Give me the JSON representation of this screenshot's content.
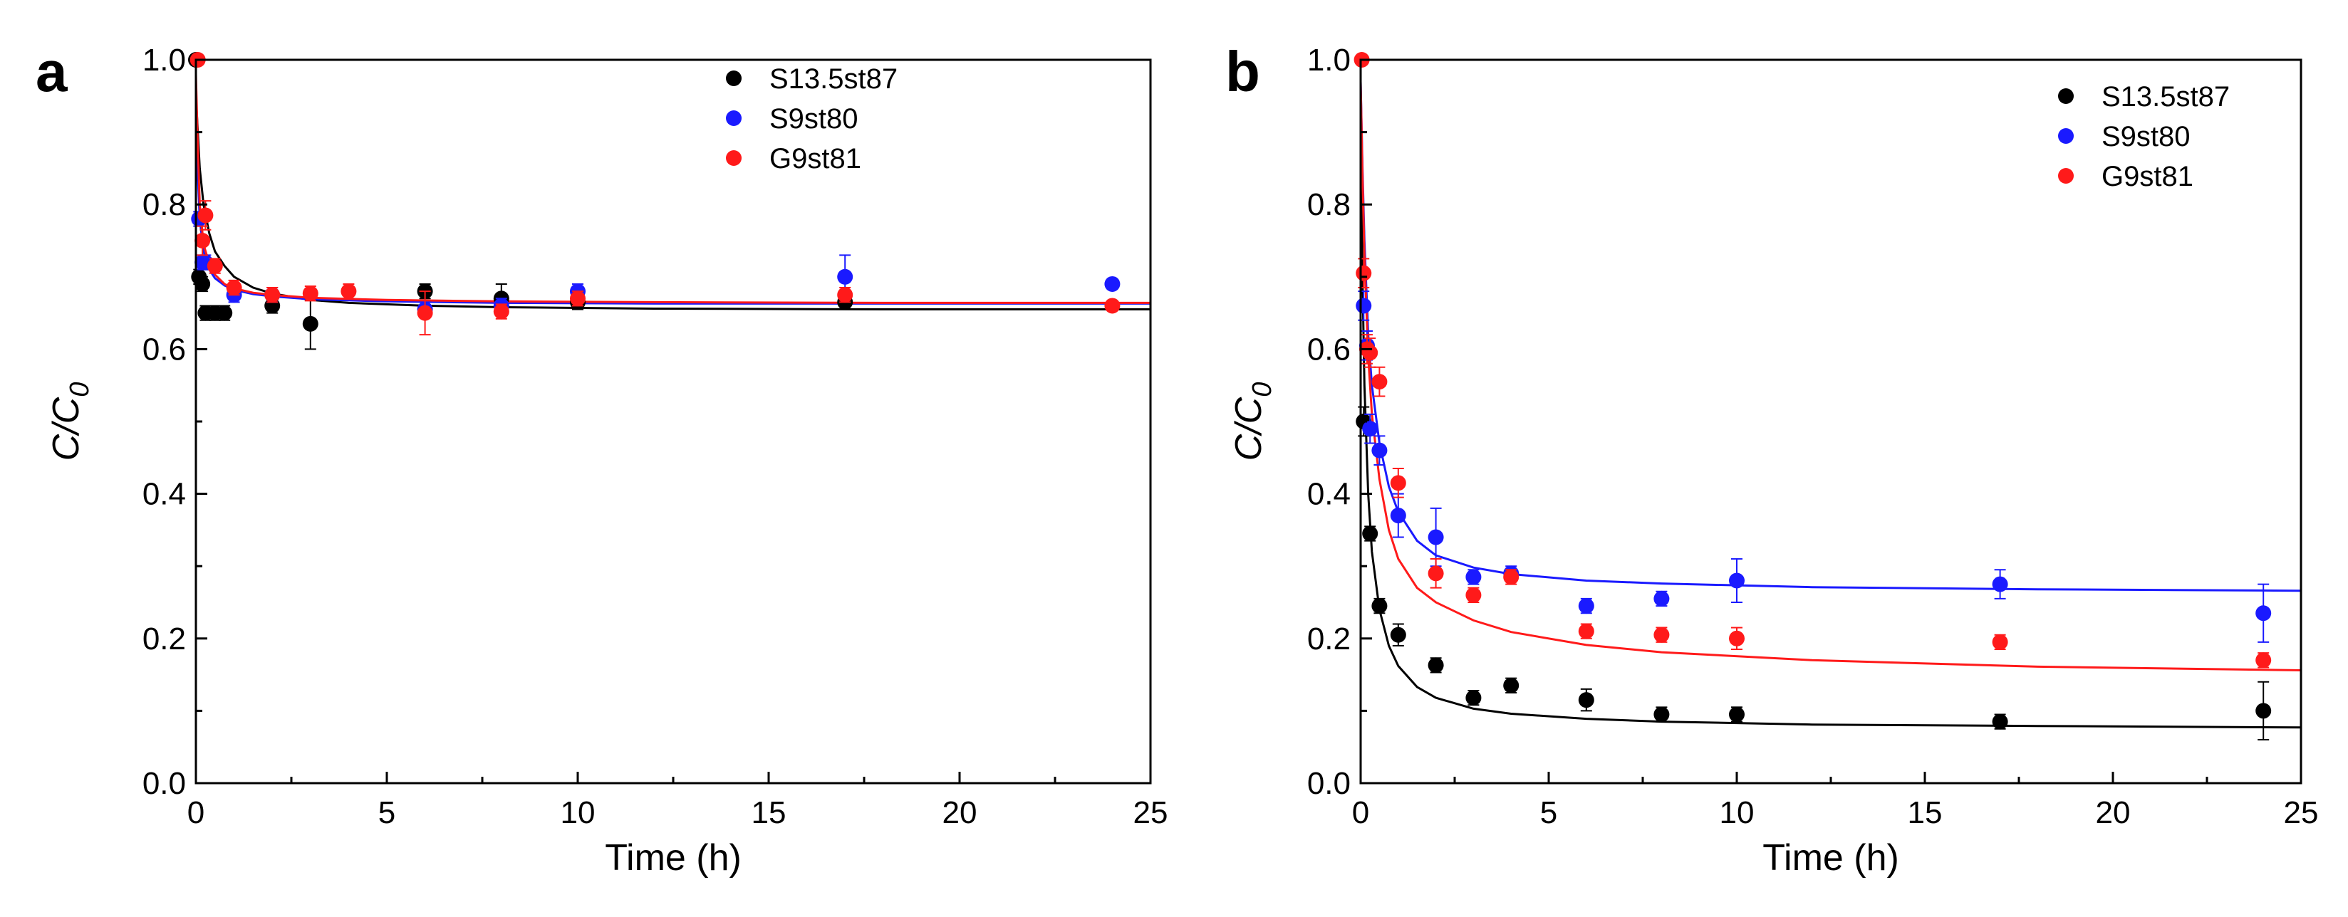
{
  "chart_data": [
    {
      "panel": "a",
      "type": "scatter",
      "xlabel": "Time (h)",
      "ylabel_main": "C/C",
      "ylabel_sub": "0",
      "xlim": [
        0,
        25
      ],
      "ylim": [
        0,
        1.0
      ],
      "xticks": [
        0,
        5,
        10,
        15,
        20,
        25
      ],
      "yticks": [
        0.0,
        0.2,
        0.4,
        0.6,
        0.8,
        1.0
      ],
      "ytick_labels": [
        "0.0",
        "0.2",
        "0.4",
        "0.6",
        "0.8",
        "1.0"
      ],
      "legend_position": "top-right",
      "series": [
        {
          "name": "S13.5st87",
          "color": "#000000",
          "points": [
            {
              "x": 0.0,
              "y": 1.0,
              "err": 0
            },
            {
              "x": 0.08,
              "y": 0.7,
              "err": 0.01
            },
            {
              "x": 0.17,
              "y": 0.69,
              "err": 0.01
            },
            {
              "x": 0.25,
              "y": 0.65,
              "err": 0.01
            },
            {
              "x": 0.5,
              "y": 0.65,
              "err": 0.01
            },
            {
              "x": 0.75,
              "y": 0.65,
              "err": 0.01
            },
            {
              "x": 2,
              "y": 0.66,
              "err": 0.01
            },
            {
              "x": 3,
              "y": 0.635,
              "err": 0.035
            },
            {
              "x": 6,
              "y": 0.68,
              "err": 0.01
            },
            {
              "x": 8,
              "y": 0.67,
              "err": 0.02
            },
            {
              "x": 10,
              "y": 0.665,
              "err": 0.01
            },
            {
              "x": 17,
              "y": 0.665,
              "err": 0.01
            }
          ],
          "fit": [
            [
              0,
              0.95
            ],
            [
              0.05,
              0.9
            ],
            [
              0.1,
              0.85
            ],
            [
              0.2,
              0.8
            ],
            [
              0.35,
              0.76
            ],
            [
              0.5,
              0.735
            ],
            [
              0.75,
              0.715
            ],
            [
              1,
              0.7
            ],
            [
              1.5,
              0.685
            ],
            [
              2,
              0.677
            ],
            [
              3,
              0.668
            ],
            [
              4,
              0.664
            ],
            [
              6,
              0.66
            ],
            [
              8,
              0.658
            ],
            [
              12,
              0.656
            ],
            [
              18,
              0.655
            ],
            [
              25,
              0.655
            ]
          ]
        },
        {
          "name": "S9st80",
          "color": "#1a1aff",
          "points": [
            {
              "x": 0.08,
              "y": 0.78,
              "err": 0.01
            },
            {
              "x": 0.17,
              "y": 0.72,
              "err": 0.01
            },
            {
              "x": 0.25,
              "y": 0.72,
              "err": 0.01
            },
            {
              "x": 1,
              "y": 0.675,
              "err": 0.01
            },
            {
              "x": 2,
              "y": 0.675,
              "err": 0.01
            },
            {
              "x": 6,
              "y": 0.655,
              "err": 0.01
            },
            {
              "x": 8,
              "y": 0.66,
              "err": 0.01
            },
            {
              "x": 10,
              "y": 0.68,
              "err": 0.01
            },
            {
              "x": 17,
              "y": 0.7,
              "err": 0.03
            },
            {
              "x": 24,
              "y": 0.69,
              "err": 0.005
            }
          ],
          "fit": [
            [
              0,
              0.92
            ],
            [
              0.05,
              0.84
            ],
            [
              0.1,
              0.78
            ],
            [
              0.2,
              0.735
            ],
            [
              0.35,
              0.71
            ],
            [
              0.5,
              0.698
            ],
            [
              0.75,
              0.688
            ],
            [
              1,
              0.682
            ],
            [
              1.5,
              0.676
            ],
            [
              2,
              0.673
            ],
            [
              3,
              0.669
            ],
            [
              5,
              0.666
            ],
            [
              8,
              0.664
            ],
            [
              12,
              0.663
            ],
            [
              18,
              0.663
            ],
            [
              25,
              0.663
            ]
          ]
        },
        {
          "name": "G9st81",
          "color": "#ff1a1a",
          "points": [
            {
              "x": 0.05,
              "y": 1.0,
              "err": 0
            },
            {
              "x": 0.17,
              "y": 0.75,
              "err": 0.02
            },
            {
              "x": 0.25,
              "y": 0.785,
              "err": 0.02
            },
            {
              "x": 0.5,
              "y": 0.715,
              "err": 0.01
            },
            {
              "x": 1,
              "y": 0.685,
              "err": 0.01
            },
            {
              "x": 2,
              "y": 0.675,
              "err": 0.01
            },
            {
              "x": 3,
              "y": 0.677,
              "err": 0.01
            },
            {
              "x": 4,
              "y": 0.68,
              "err": 0.01
            },
            {
              "x": 6,
              "y": 0.65,
              "err": 0.03
            },
            {
              "x": 8,
              "y": 0.652,
              "err": 0.01
            },
            {
              "x": 10,
              "y": 0.67,
              "err": 0.01
            },
            {
              "x": 17,
              "y": 0.675,
              "err": 0.01
            },
            {
              "x": 24,
              "y": 0.66,
              "err": 0.005
            }
          ],
          "fit": [
            [
              0,
              0.98
            ],
            [
              0.05,
              0.88
            ],
            [
              0.1,
              0.8
            ],
            [
              0.2,
              0.745
            ],
            [
              0.35,
              0.718
            ],
            [
              0.5,
              0.703
            ],
            [
              0.75,
              0.69
            ],
            [
              1,
              0.684
            ],
            [
              1.5,
              0.678
            ],
            [
              2,
              0.675
            ],
            [
              3,
              0.671
            ],
            [
              5,
              0.668
            ],
            [
              8,
              0.666
            ],
            [
              12,
              0.665
            ],
            [
              18,
              0.664
            ],
            [
              25,
              0.664
            ]
          ]
        }
      ]
    },
    {
      "panel": "b",
      "type": "scatter",
      "xlabel": "Time (h)",
      "ylabel_main": "C/C",
      "ylabel_sub": "0",
      "xlim": [
        0,
        25
      ],
      "ylim": [
        0,
        1.0
      ],
      "xticks": [
        0,
        5,
        10,
        15,
        20,
        25
      ],
      "yticks": [
        0.0,
        0.2,
        0.4,
        0.6,
        0.8,
        1.0
      ],
      "ytick_labels": [
        "0.0",
        "0.2",
        "0.4",
        "0.6",
        "0.8",
        "1.0"
      ],
      "legend_position": "top-right",
      "series": [
        {
          "name": "S13.5st87",
          "color": "#000000",
          "points": [
            {
              "x": 0.08,
              "y": 0.5,
              "err": 0.02
            },
            {
              "x": 0.25,
              "y": 0.345,
              "err": 0.01
            },
            {
              "x": 0.5,
              "y": 0.245,
              "err": 0.01
            },
            {
              "x": 1,
              "y": 0.205,
              "err": 0.015
            },
            {
              "x": 2,
              "y": 0.163,
              "err": 0.01
            },
            {
              "x": 3,
              "y": 0.118,
              "err": 0.01
            },
            {
              "x": 4,
              "y": 0.135,
              "err": 0.01
            },
            {
              "x": 6,
              "y": 0.115,
              "err": 0.015
            },
            {
              "x": 8,
              "y": 0.095,
              "err": 0.01
            },
            {
              "x": 10,
              "y": 0.095,
              "err": 0.01
            },
            {
              "x": 17,
              "y": 0.085,
              "err": 0.01
            },
            {
              "x": 24,
              "y": 0.1,
              "err": 0.04
            }
          ],
          "fit": [
            [
              0,
              0.9
            ],
            [
              0.05,
              0.7
            ],
            [
              0.1,
              0.55
            ],
            [
              0.2,
              0.4
            ],
            [
              0.3,
              0.32
            ],
            [
              0.5,
              0.24
            ],
            [
              0.75,
              0.19
            ],
            [
              1,
              0.162
            ],
            [
              1.5,
              0.133
            ],
            [
              2,
              0.118
            ],
            [
              3,
              0.103
            ],
            [
              4,
              0.096
            ],
            [
              6,
              0.089
            ],
            [
              8,
              0.085
            ],
            [
              12,
              0.081
            ],
            [
              18,
              0.079
            ],
            [
              25,
              0.077
            ]
          ]
        },
        {
          "name": "S9st80",
          "color": "#1a1aff",
          "points": [
            {
              "x": 0.08,
              "y": 0.66,
              "err": 0.02
            },
            {
              "x": 0.17,
              "y": 0.605,
              "err": 0.02
            },
            {
              "x": 0.25,
              "y": 0.49,
              "err": 0.02
            },
            {
              "x": 0.5,
              "y": 0.46,
              "err": 0.02
            },
            {
              "x": 1,
              "y": 0.37,
              "err": 0.03
            },
            {
              "x": 2,
              "y": 0.34,
              "err": 0.04
            },
            {
              "x": 3,
              "y": 0.285,
              "err": 0.01
            },
            {
              "x": 4,
              "y": 0.29,
              "err": 0.01
            },
            {
              "x": 6,
              "y": 0.245,
              "err": 0.01
            },
            {
              "x": 8,
              "y": 0.255,
              "err": 0.01
            },
            {
              "x": 10,
              "y": 0.28,
              "err": 0.03
            },
            {
              "x": 17,
              "y": 0.275,
              "err": 0.02
            },
            {
              "x": 24,
              "y": 0.235,
              "err": 0.04
            }
          ],
          "fit": [
            [
              0,
              0.97
            ],
            [
              0.05,
              0.85
            ],
            [
              0.1,
              0.75
            ],
            [
              0.2,
              0.62
            ],
            [
              0.3,
              0.55
            ],
            [
              0.5,
              0.47
            ],
            [
              0.75,
              0.41
            ],
            [
              1,
              0.375
            ],
            [
              1.5,
              0.335
            ],
            [
              2,
              0.315
            ],
            [
              3,
              0.298
            ],
            [
              4,
              0.289
            ],
            [
              6,
              0.28
            ],
            [
              8,
              0.276
            ],
            [
              12,
              0.271
            ],
            [
              18,
              0.268
            ],
            [
              25,
              0.266
            ]
          ]
        },
        {
          "name": "G9st81",
          "color": "#ff1a1a",
          "points": [
            {
              "x": 0.03,
              "y": 1.0,
              "err": 0
            },
            {
              "x": 0.08,
              "y": 0.705,
              "err": 0.02
            },
            {
              "x": 0.17,
              "y": 0.6,
              "err": 0.02
            },
            {
              "x": 0.25,
              "y": 0.595,
              "err": 0.02
            },
            {
              "x": 0.5,
              "y": 0.555,
              "err": 0.02
            },
            {
              "x": 1,
              "y": 0.415,
              "err": 0.02
            },
            {
              "x": 2,
              "y": 0.29,
              "err": 0.02
            },
            {
              "x": 3,
              "y": 0.26,
              "err": 0.01
            },
            {
              "x": 4,
              "y": 0.285,
              "err": 0.01
            },
            {
              "x": 6,
              "y": 0.21,
              "err": 0.01
            },
            {
              "x": 8,
              "y": 0.205,
              "err": 0.01
            },
            {
              "x": 10,
              "y": 0.2,
              "err": 0.015
            },
            {
              "x": 17,
              "y": 0.195,
              "err": 0.01
            },
            {
              "x": 24,
              "y": 0.17,
              "err": 0.01
            }
          ],
          "fit": [
            [
              0,
              0.97
            ],
            [
              0.05,
              0.84
            ],
            [
              0.1,
              0.73
            ],
            [
              0.2,
              0.59
            ],
            [
              0.3,
              0.51
            ],
            [
              0.5,
              0.42
            ],
            [
              0.75,
              0.35
            ],
            [
              1,
              0.31
            ],
            [
              1.5,
              0.27
            ],
            [
              2,
              0.25
            ],
            [
              3,
              0.225
            ],
            [
              4,
              0.209
            ],
            [
              6,
              0.191
            ],
            [
              8,
              0.181
            ],
            [
              12,
              0.17
            ],
            [
              18,
              0.161
            ],
            [
              25,
              0.156
            ]
          ]
        }
      ]
    }
  ]
}
